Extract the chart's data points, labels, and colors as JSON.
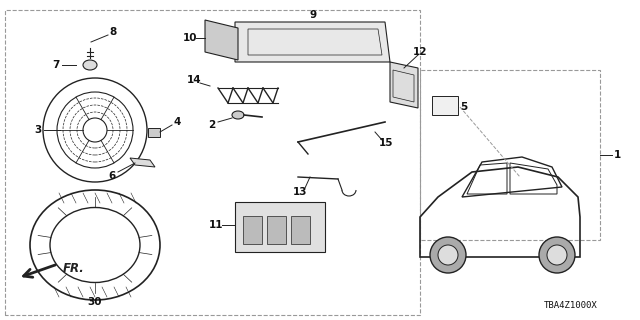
{
  "bg_color": "#ffffff",
  "border_color": "#cccccc",
  "line_color": "#222222",
  "text_color": "#111111",
  "diagram_code": "TBA4Z1000X",
  "fr_label": "FR.",
  "figsize": [
    6.4,
    3.2
  ],
  "dpi": 100
}
